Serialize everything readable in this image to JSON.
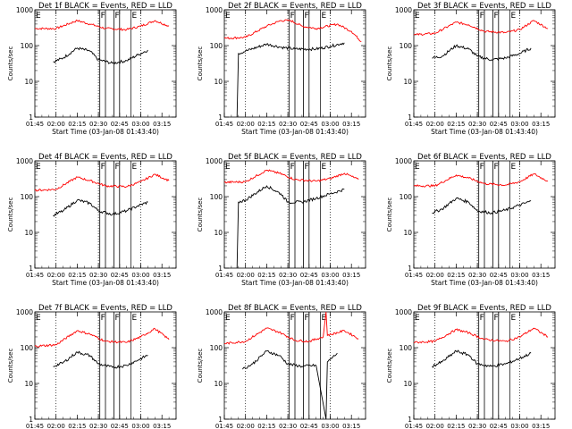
{
  "chart_data": {
    "type": "line",
    "layout": "3x3 grid",
    "scale": "log",
    "ylim": [
      1,
      1000
    ],
    "yticks": [
      "1",
      "10",
      "100",
      "1000"
    ],
    "ylabel": "Counts/sec",
    "xlabel": "Start Time (03-Jan-08 01:43:40)",
    "xlim": [
      "01:45",
      "03:25"
    ],
    "xticks": [
      "01:45",
      "02:00",
      "02:15",
      "02:30",
      "02:45",
      "03:00",
      "03:15"
    ],
    "vertical_dotted_lines": [
      "02:00",
      "02:30",
      "03:00"
    ],
    "interval_markers": [
      {
        "label": "F",
        "start": "02:31",
        "end": "02:35"
      },
      {
        "label": "F",
        "start": "02:41",
        "end": "02:45"
      },
      {
        "label": "E",
        "start": "02:53",
        "end": "02:53"
      }
    ],
    "edge_label": "E",
    "series_colors": {
      "events": "#000000",
      "lld": "#ff0000"
    },
    "panels": [
      {
        "title": "Det 1f BLACK = Events, RED = LLD",
        "events": [
          [
            "01:58",
            35
          ],
          [
            "02:05",
            45
          ],
          [
            "02:15",
            85
          ],
          [
            "02:24",
            70
          ],
          [
            "02:30",
            40
          ],
          [
            "02:40",
            32
          ],
          [
            "02:50",
            38
          ],
          [
            "02:58",
            55
          ],
          [
            "03:05",
            75
          ]
        ],
        "lld": [
          [
            "01:45",
            300
          ],
          [
            "02:00",
            300
          ],
          [
            "02:15",
            500
          ],
          [
            "02:24",
            400
          ],
          [
            "02:35",
            300
          ],
          [
            "02:50",
            280
          ],
          [
            "03:00",
            350
          ],
          [
            "03:10",
            500
          ],
          [
            "03:20",
            350
          ]
        ]
      },
      {
        "title": "Det 2f BLACK = Events, RED = LLD",
        "events": [
          [
            "01:54",
            1
          ],
          [
            "01:55",
            60
          ],
          [
            "02:00",
            70
          ],
          [
            "02:15",
            110
          ],
          [
            "02:25",
            90
          ],
          [
            "02:35",
            80
          ],
          [
            "02:50",
            80
          ],
          [
            "03:00",
            95
          ],
          [
            "03:10",
            120
          ]
        ],
        "lld": [
          [
            "01:45",
            160
          ],
          [
            "02:00",
            170
          ],
          [
            "02:15",
            350
          ],
          [
            "02:25",
            500
          ],
          [
            "02:32",
            500
          ],
          [
            "02:40",
            350
          ],
          [
            "02:50",
            300
          ],
          [
            "03:05",
            400
          ],
          [
            "03:15",
            250
          ],
          [
            "03:22",
            130
          ]
        ]
      },
      {
        "title": "Det 3f BLACK = Events, RED = LLD",
        "events": [
          [
            "01:58",
            45
          ],
          [
            "02:05",
            50
          ],
          [
            "02:15",
            100
          ],
          [
            "02:24",
            80
          ],
          [
            "02:30",
            50
          ],
          [
            "02:40",
            40
          ],
          [
            "02:50",
            45
          ],
          [
            "03:00",
            60
          ],
          [
            "03:08",
            85
          ]
        ],
        "lld": [
          [
            "01:45",
            200
          ],
          [
            "02:00",
            220
          ],
          [
            "02:15",
            450
          ],
          [
            "02:24",
            380
          ],
          [
            "02:35",
            250
          ],
          [
            "02:50",
            230
          ],
          [
            "03:00",
            280
          ],
          [
            "03:10",
            500
          ],
          [
            "03:20",
            300
          ]
        ]
      },
      {
        "title": "Det 4f BLACK = Events, RED = LLD",
        "events": [
          [
            "01:58",
            30
          ],
          [
            "02:05",
            40
          ],
          [
            "02:15",
            80
          ],
          [
            "02:24",
            65
          ],
          [
            "02:30",
            40
          ],
          [
            "02:40",
            32
          ],
          [
            "02:50",
            40
          ],
          [
            "02:58",
            55
          ],
          [
            "03:05",
            70
          ]
        ],
        "lld": [
          [
            "01:45",
            150
          ],
          [
            "02:00",
            160
          ],
          [
            "02:15",
            350
          ],
          [
            "02:24",
            280
          ],
          [
            "02:35",
            200
          ],
          [
            "02:50",
            190
          ],
          [
            "03:00",
            260
          ],
          [
            "03:10",
            420
          ],
          [
            "03:20",
            280
          ]
        ]
      },
      {
        "title": "Det 5f BLACK = Events, RED = LLD",
        "events": [
          [
            "01:54",
            1
          ],
          [
            "01:55",
            70
          ],
          [
            "02:00",
            80
          ],
          [
            "02:15",
            200
          ],
          [
            "02:25",
            120
          ],
          [
            "02:30",
            70
          ],
          [
            "02:40",
            70
          ],
          [
            "02:50",
            90
          ],
          [
            "03:00",
            120
          ],
          [
            "03:10",
            160
          ]
        ],
        "lld": [
          [
            "01:45",
            250
          ],
          [
            "02:00",
            260
          ],
          [
            "02:15",
            550
          ],
          [
            "02:24",
            450
          ],
          [
            "02:35",
            300
          ],
          [
            "02:50",
            270
          ],
          [
            "03:00",
            320
          ],
          [
            "03:10",
            450
          ],
          [
            "03:20",
            300
          ]
        ]
      },
      {
        "title": "Det 6f BLACK = Events, RED = LLD",
        "events": [
          [
            "01:58",
            35
          ],
          [
            "02:05",
            45
          ],
          [
            "02:15",
            90
          ],
          [
            "02:24",
            70
          ],
          [
            "02:30",
            40
          ],
          [
            "02:40",
            35
          ],
          [
            "02:50",
            42
          ],
          [
            "03:00",
            58
          ],
          [
            "03:08",
            75
          ]
        ],
        "lld": [
          [
            "01:45",
            200
          ],
          [
            "02:00",
            200
          ],
          [
            "02:15",
            400
          ],
          [
            "02:24",
            330
          ],
          [
            "02:35",
            230
          ],
          [
            "02:50",
            210
          ],
          [
            "03:00",
            260
          ],
          [
            "03:10",
            430
          ],
          [
            "03:20",
            270
          ]
        ]
      },
      {
        "title": "Det 7f BLACK = Events, RED = LLD",
        "events": [
          [
            "01:58",
            30
          ],
          [
            "02:05",
            38
          ],
          [
            "02:15",
            75
          ],
          [
            "02:24",
            60
          ],
          [
            "02:30",
            35
          ],
          [
            "02:40",
            28
          ],
          [
            "02:50",
            32
          ],
          [
            "02:58",
            45
          ],
          [
            "03:05",
            62
          ]
        ],
        "lld": [
          [
            "01:45",
            110
          ],
          [
            "02:00",
            120
          ],
          [
            "02:15",
            300
          ],
          [
            "02:24",
            240
          ],
          [
            "02:35",
            150
          ],
          [
            "02:50",
            140
          ],
          [
            "03:00",
            200
          ],
          [
            "03:10",
            340
          ],
          [
            "03:20",
            170
          ]
        ]
      },
      {
        "title": "Det 8f BLACK = Events, RED = LLD",
        "events": [
          [
            "01:58",
            25
          ],
          [
            "02:05",
            35
          ],
          [
            "02:15",
            80
          ],
          [
            "02:24",
            60
          ],
          [
            "02:30",
            35
          ],
          [
            "02:40",
            30
          ],
          [
            "02:50",
            32
          ],
          [
            "02:57",
            1
          ],
          [
            "02:58",
            40
          ],
          [
            "03:05",
            70
          ]
        ],
        "lld": [
          [
            "01:45",
            130
          ],
          [
            "02:00",
            150
          ],
          [
            "02:15",
            350
          ],
          [
            "02:24",
            270
          ],
          [
            "02:35",
            160
          ],
          [
            "02:45",
            150
          ],
          [
            "02:55",
            200
          ],
          [
            "02:57",
            1000
          ],
          [
            "02:58",
            220
          ],
          [
            "03:10",
            300
          ],
          [
            "03:20",
            180
          ]
        ]
      },
      {
        "title": "Det 9f BLACK = Events, RED = LLD",
        "events": [
          [
            "01:58",
            30
          ],
          [
            "02:05",
            40
          ],
          [
            "02:15",
            80
          ],
          [
            "02:24",
            62
          ],
          [
            "02:30",
            35
          ],
          [
            "02:40",
            30
          ],
          [
            "02:50",
            35
          ],
          [
            "03:00",
            50
          ],
          [
            "03:08",
            70
          ]
        ],
        "lld": [
          [
            "01:45",
            140
          ],
          [
            "02:00",
            150
          ],
          [
            "02:15",
            320
          ],
          [
            "02:24",
            260
          ],
          [
            "02:35",
            170
          ],
          [
            "02:50",
            150
          ],
          [
            "03:00",
            200
          ],
          [
            "03:10",
            350
          ],
          [
            "03:20",
            200
          ]
        ]
      }
    ]
  }
}
